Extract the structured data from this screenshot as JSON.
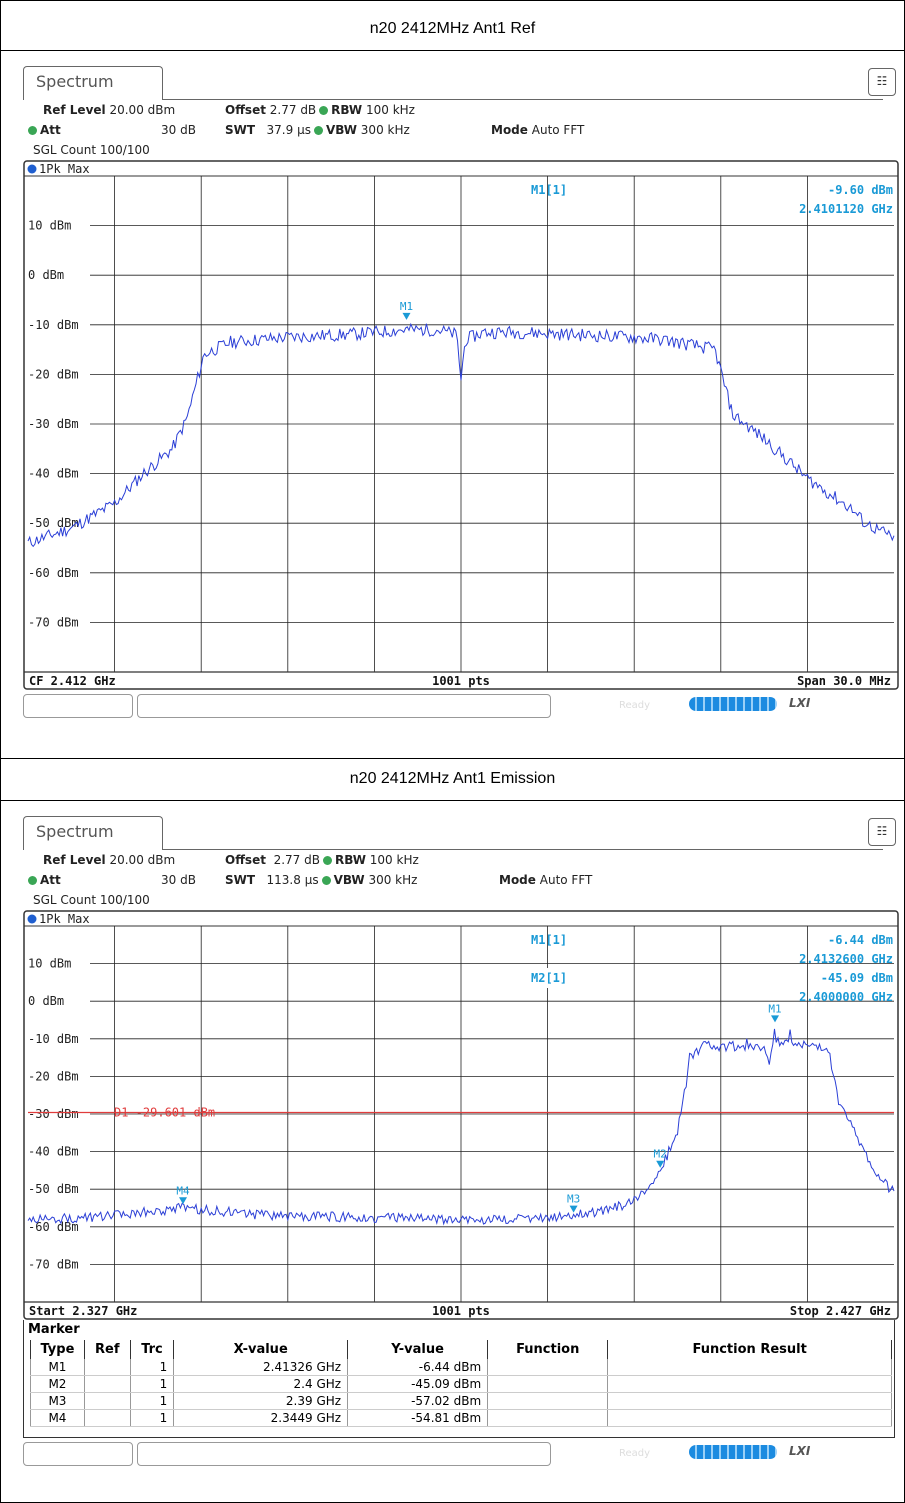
{
  "panels": [
    {
      "caption": "n20 2412MHz Ant1 Ref",
      "tab_label": "Spectrum",
      "settings": {
        "ref_level_label": "Ref Level",
        "ref_level": "20.00 dBm",
        "offset_label": "Offset",
        "offset": "2.77 dB",
        "rbw_label": "RBW",
        "rbw": "100 kHz",
        "att_label": "Att",
        "att": "30 dB",
        "swt_label": "SWT",
        "swt": "37.9 µs",
        "vbw_label": "VBW",
        "vbw": "300 kHz",
        "mode_label": "Mode",
        "mode": "Auto FFT",
        "sgl_count": "SGL Count 100/100"
      },
      "trace_label": "1Pk Max",
      "footer": {
        "left": "CF 2.412 GHz",
        "center": "1001 pts",
        "right": "Span 30.0 MHz"
      },
      "marker_readouts": [
        {
          "name": "M1[1]",
          "value": "-9.60 dBm",
          "freq": "2.4101120 GHz"
        }
      ],
      "status": {
        "ready": "Ready",
        "lxi": "LXI"
      }
    },
    {
      "caption": "n20 2412MHz Ant1 Emission",
      "tab_label": "Spectrum",
      "settings": {
        "ref_level_label": "Ref Level",
        "ref_level": "20.00 dBm",
        "offset_label": "Offset",
        "offset": "2.77 dB",
        "rbw_label": "RBW",
        "rbw": "100 kHz",
        "att_label": "Att",
        "att": "30 dB",
        "swt_label": "SWT",
        "swt": "113.8 µs",
        "vbw_label": "VBW",
        "vbw": "300 kHz",
        "mode_label": "Mode",
        "mode": "Auto FFT",
        "sgl_count": "SGL Count 100/100"
      },
      "trace_label": "1Pk Max",
      "footer": {
        "left": "Start 2.327 GHz",
        "center": "1001 pts",
        "right": "Stop 2.427 GHz"
      },
      "marker_readouts": [
        {
          "name": "M1[1]",
          "value": "-6.44 dBm",
          "freq": "2.4132600 GHz"
        },
        {
          "name": "M2[1]",
          "value": "-45.09 dBm",
          "freq": "2.4000000 GHz"
        }
      ],
      "limit_line_label": "D1  -29.601 dBm",
      "marker_table": {
        "title": "Marker",
        "headers": [
          "Type",
          "Ref",
          "Trc",
          "X-value",
          "Y-value",
          "Function",
          "Function Result"
        ],
        "rows": [
          [
            "M1",
            "",
            "1",
            "2.41326 GHz",
            "-6.44 dBm",
            "",
            ""
          ],
          [
            "M2",
            "",
            "1",
            "2.4 GHz",
            "-45.09 dBm",
            "",
            ""
          ],
          [
            "M3",
            "",
            "1",
            "2.39 GHz",
            "-57.02 dBm",
            "",
            ""
          ],
          [
            "M4",
            "",
            "1",
            "2.3449 GHz",
            "-54.81 dBm",
            "",
            ""
          ]
        ]
      },
      "status": {
        "ready": "Ready",
        "lxi": "LXI"
      }
    }
  ],
  "chart_data": [
    {
      "type": "line",
      "title": "n20 2412MHz Ant1 Ref",
      "x_unit": "GHz",
      "xlim": [
        2.397,
        2.427
      ],
      "ylim": [
        -80,
        20
      ],
      "ytick_labels": [
        "10 dBm",
        "0 dBm",
        "-10 dBm",
        "-20 dBm",
        "-30 dBm",
        "-40 dBm",
        "-50 dBm",
        "-60 dBm",
        "-70 dBm"
      ],
      "ytick_values": [
        10,
        0,
        -10,
        -20,
        -30,
        -40,
        -50,
        -60,
        -70
      ],
      "grid": true,
      "series": [
        {
          "name": "1Pk Max",
          "color": "#2b3fd6",
          "x": [
            2.397,
            2.3985,
            2.4,
            2.401,
            2.402,
            2.4025,
            2.4031,
            2.404,
            2.406,
            2.408,
            2.41,
            2.4112,
            2.41185,
            2.412,
            2.41215,
            2.4128,
            2.414,
            2.416,
            2.418,
            2.419,
            2.4208,
            2.4214,
            2.4225,
            2.424,
            2.4255,
            2.426,
            2.427
          ],
          "y": [
            -54,
            -51,
            -46,
            -40,
            -35,
            -29,
            -16,
            -13.5,
            -12.5,
            -12,
            -11,
            -11,
            -12,
            -21,
            -13,
            -11.5,
            -11.5,
            -12,
            -12.5,
            -13,
            -15,
            -28,
            -33,
            -41,
            -47,
            -50,
            -53
          ]
        }
      ],
      "markers": [
        {
          "label": "M1",
          "x": 2.410112,
          "y": -9.6
        }
      ]
    },
    {
      "type": "line",
      "title": "n20 2412MHz Ant1 Emission",
      "x_unit": "GHz",
      "xlim": [
        2.327,
        2.427
      ],
      "ylim": [
        -80,
        20
      ],
      "ytick_labels": [
        "10 dBm",
        "0 dBm",
        "-10 dBm",
        "-20 dBm",
        "-30 dBm",
        "-40 dBm",
        "-50 dBm",
        "-60 dBm",
        "-70 dBm"
      ],
      "ytick_values": [
        10,
        0,
        -10,
        -20,
        -30,
        -40,
        -50,
        -60,
        -70
      ],
      "grid": true,
      "limit_line": {
        "label": "D1  -29.601 dBm",
        "y": -29.601,
        "color": "#e03c3c"
      },
      "series": [
        {
          "name": "1Pk Max",
          "color": "#2b3fd6",
          "x": [
            2.327,
            2.335,
            2.3449,
            2.355,
            2.365,
            2.375,
            2.385,
            2.39,
            2.393,
            2.396,
            2.398,
            2.4,
            2.402,
            2.4035,
            2.405,
            2.409,
            2.412,
            2.4125,
            2.413,
            2.416,
            2.4195,
            2.4205,
            2.423,
            2.425,
            2.427
          ],
          "y": [
            -58,
            -57.5,
            -55,
            -57,
            -57.5,
            -58,
            -58,
            -57,
            -56,
            -54,
            -51,
            -45,
            -35,
            -15,
            -12,
            -12,
            -13,
            -17,
            -11,
            -11,
            -13,
            -26,
            -37,
            -46,
            -51
          ]
        }
      ],
      "markers": [
        {
          "label": "M1",
          "x": 2.41326,
          "y": -6.44
        },
        {
          "label": "M2",
          "x": 2.4,
          "y": -45.09
        },
        {
          "label": "M3",
          "x": 2.39,
          "y": -57.02
        },
        {
          "label": "M4",
          "x": 2.3449,
          "y": -54.81
        }
      ]
    }
  ]
}
